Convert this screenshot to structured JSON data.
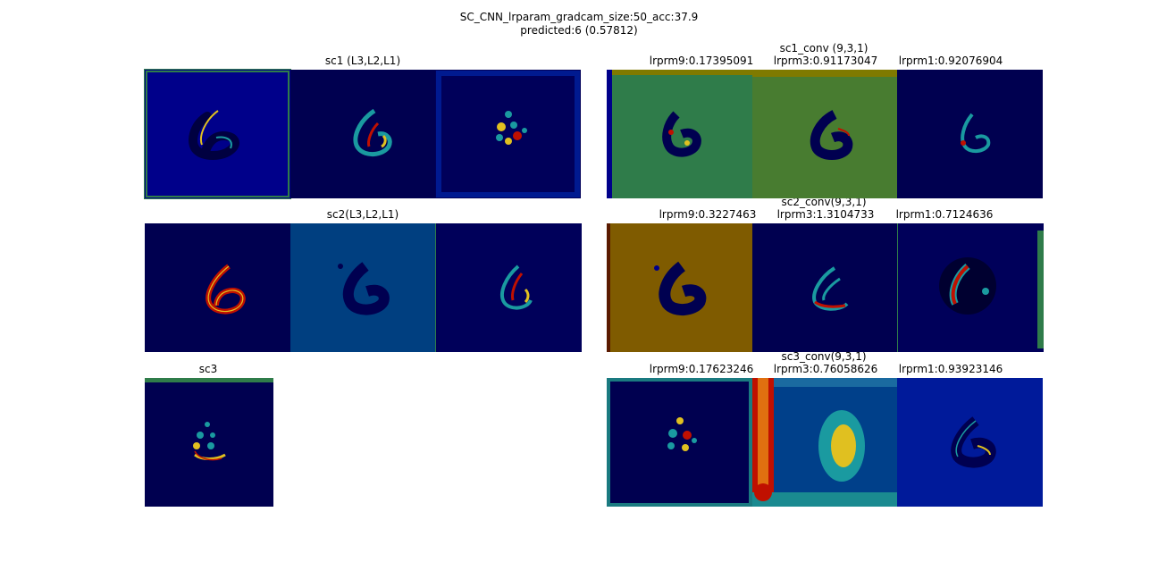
{
  "figure": {
    "title_line1": "SC_CNN_lrparam_gradcam_size:50_acc:37.9",
    "title_line2": "predicted:6 (0.57812)"
  },
  "left": {
    "sc1_title": "sc1 (L3,L2,L1)",
    "sc2_title": "sc2(L3,L2,L1)",
    "sc3_title": "sc3"
  },
  "right": {
    "sc1_conv": {
      "title": "sc1_conv (9,3,1)",
      "labels": [
        "lrprm9:0.17395091",
        "lrprm3:0.91173047",
        "lrprm1:0.92076904"
      ]
    },
    "sc2_conv": {
      "title": "sc2_conv(9,3,1)",
      "labels": [
        "lrprm9:0.3227463",
        "lrprm3:1.3104733",
        "lrprm1:0.7124636"
      ]
    },
    "sc3_conv": {
      "title": "sc3_conv(9,3,1)",
      "labels": [
        "lrprm9:0.17623246",
        "lrprm3:0.76058626",
        "lrprm1:0.93923146"
      ]
    }
  },
  "colors": {
    "jet_dark_navy": "#000050",
    "jet_blue": "#00008a",
    "jet_mid_blue": "#003f80",
    "jet_green": "#2f7c4a",
    "jet_olive_green": "#487c30",
    "jet_olive": "#7f5b00",
    "jet_red": "#c01000",
    "jet_yellow": "#e0c020",
    "jet_cyan": "#1a9aa0"
  },
  "panels": {
    "sc1_1": "heatmap-digit-6",
    "sc1_2": "heatmap-digit-6",
    "sc1_3": "heatmap-digit-6",
    "sc2_1": "heatmap-digit-6",
    "sc2_2": "heatmap-digit-6",
    "sc2_3": "heatmap-digit-6",
    "sc3_1": "heatmap-digit-6",
    "sc1c_1": "heatmap-digit-6",
    "sc1c_2": "heatmap-digit-6",
    "sc1c_3": "heatmap-digit-6",
    "sc2c_1": "heatmap-digit-6",
    "sc2c_2": "heatmap-digit-6",
    "sc2c_3": "heatmap-digit-6",
    "sc3c_1": "heatmap-digit-6",
    "sc3c_2": "heatmap-digit-6",
    "sc3c_3": "heatmap-digit-6"
  }
}
